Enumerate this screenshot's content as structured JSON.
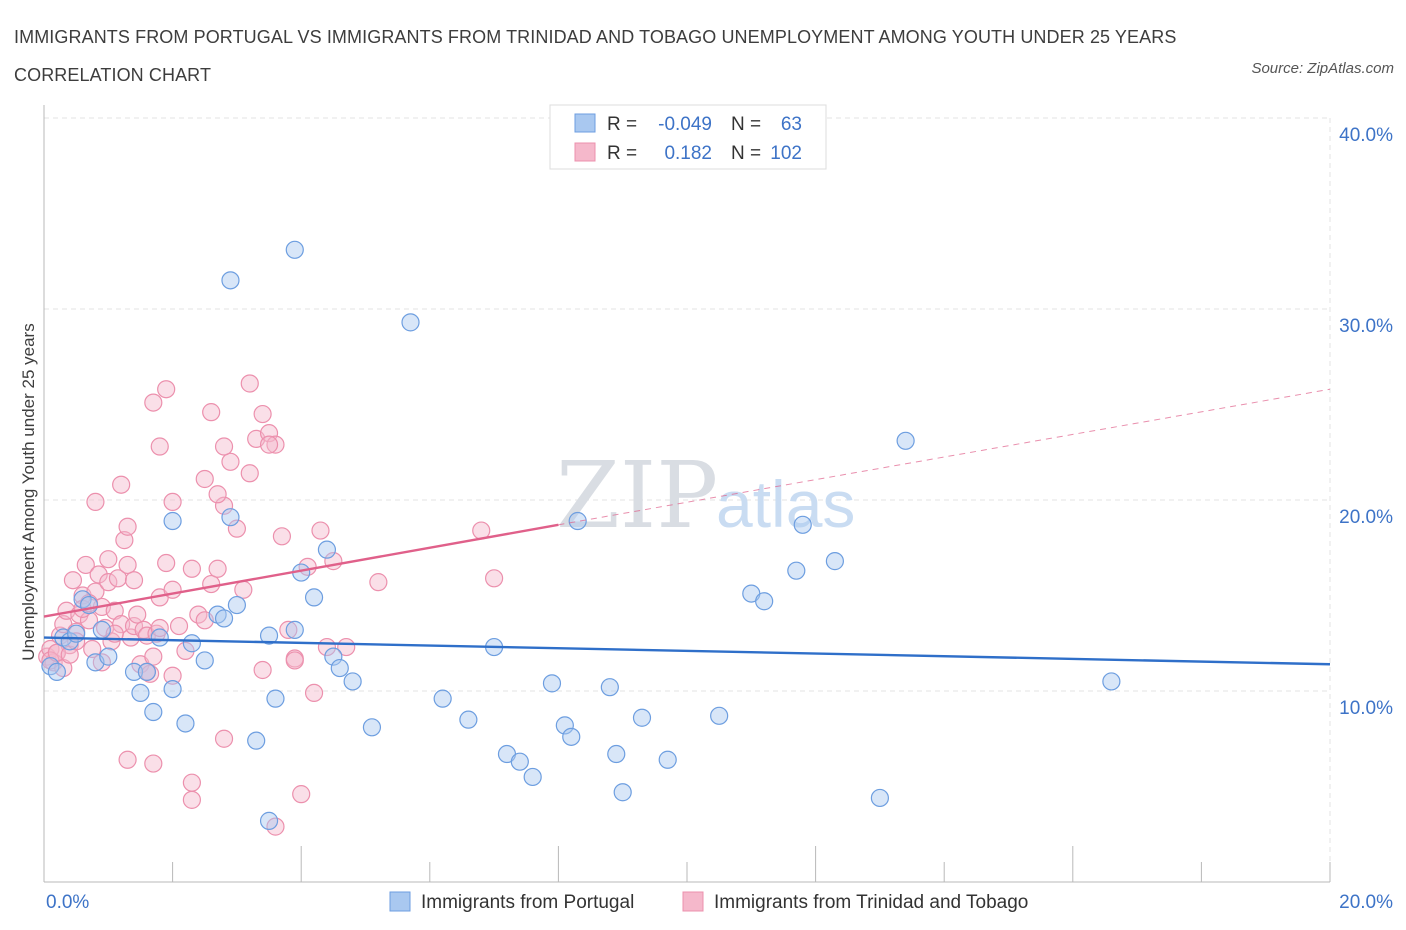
{
  "title": "IMMIGRANTS FROM PORTUGAL VS IMMIGRANTS FROM TRINIDAD AND TOBAGO UNEMPLOYMENT AMONG YOUTH UNDER 25 YEARS CORRELATION CHART",
  "source": "Source: ZipAtlas.com",
  "watermark": {
    "zip": "ZIP",
    "atlas": "atlas"
  },
  "legend": {
    "r_label": "R =",
    "n_label": "N =",
    "rows": [
      {
        "r": "-0.049",
        "n": "63"
      },
      {
        "r": "0.182",
        "n": "102"
      }
    ]
  },
  "colors": {
    "portugal_fill": "#a9c8f0",
    "portugal_stroke": "#6d9ee0",
    "portugal_line": "#2f6fc9",
    "trinidad_fill": "#f5b8cb",
    "trinidad_stroke": "#ec90ad",
    "trinidad_line": "#e0608a",
    "tick_label": "#3d73c7"
  },
  "chart_data": {
    "type": "scatter",
    "xlabel": "",
    "ylabel": "Unemployment Among Youth under 25 years",
    "xlim": [
      0,
      20
    ],
    "ylim": [
      0,
      40
    ],
    "x_tick_labels": [
      "0.0%",
      "20.0%"
    ],
    "y_tick_labels": [
      "10.0%",
      "20.0%",
      "30.0%",
      "40.0%"
    ],
    "y_ticks": [
      10,
      20,
      30,
      40
    ],
    "grid": true,
    "legend_position": "top-center",
    "series": [
      {
        "name": "Immigrants from Portugal",
        "r": -0.049,
        "n": 63,
        "trend": {
          "x0": 0.0,
          "y0": 12.8,
          "x1": 20.0,
          "y1": 11.4
        },
        "points": [
          [
            0.1,
            11.3
          ],
          [
            0.2,
            11.0
          ],
          [
            0.3,
            12.8
          ],
          [
            0.4,
            12.6
          ],
          [
            0.5,
            13.0
          ],
          [
            0.6,
            14.8
          ],
          [
            0.7,
            14.5
          ],
          [
            0.8,
            11.5
          ],
          [
            0.9,
            13.2
          ],
          [
            1.0,
            11.8
          ],
          [
            1.4,
            11.0
          ],
          [
            1.5,
            9.9
          ],
          [
            1.7,
            8.9
          ],
          [
            1.8,
            12.8
          ],
          [
            2.0,
            10.1
          ],
          [
            2.2,
            8.3
          ],
          [
            2.3,
            12.5
          ],
          [
            2.5,
            11.6
          ],
          [
            2.7,
            14.0
          ],
          [
            2.8,
            13.8
          ],
          [
            3.0,
            14.5
          ],
          [
            3.3,
            7.4
          ],
          [
            3.5,
            12.9
          ],
          [
            3.6,
            9.6
          ],
          [
            3.9,
            13.2
          ],
          [
            4.0,
            16.2
          ],
          [
            4.2,
            14.9
          ],
          [
            4.4,
            17.4
          ],
          [
            4.5,
            11.8
          ],
          [
            4.6,
            11.2
          ],
          [
            4.8,
            10.5
          ],
          [
            5.1,
            8.1
          ],
          [
            5.7,
            29.3
          ],
          [
            6.2,
            9.6
          ],
          [
            6.6,
            8.5
          ],
          [
            7.0,
            12.3
          ],
          [
            7.2,
            6.7
          ],
          [
            7.4,
            6.3
          ],
          [
            7.6,
            5.5
          ],
          [
            7.9,
            10.4
          ],
          [
            8.1,
            8.2
          ],
          [
            8.2,
            7.6
          ],
          [
            8.3,
            18.9
          ],
          [
            8.8,
            10.2
          ],
          [
            8.9,
            6.7
          ],
          [
            9.0,
            4.7
          ],
          [
            9.3,
            8.6
          ],
          [
            9.7,
            6.4
          ],
          [
            10.5,
            8.7
          ],
          [
            11.0,
            15.1
          ],
          [
            11.2,
            14.7
          ],
          [
            11.7,
            16.3
          ],
          [
            11.8,
            18.7
          ],
          [
            12.3,
            16.8
          ],
          [
            13.0,
            4.4
          ],
          [
            13.4,
            23.1
          ],
          [
            16.6,
            10.5
          ],
          [
            2.9,
            31.5
          ],
          [
            3.9,
            33.1
          ],
          [
            2.0,
            18.9
          ],
          [
            2.9,
            19.1
          ],
          [
            3.5,
            3.2
          ],
          [
            1.6,
            11.0
          ]
        ]
      },
      {
        "name": "Immigrants from Trinidad and Tobago",
        "r": 0.182,
        "n": 102,
        "trend": {
          "x0": 0.0,
          "y0": 13.9,
          "x1": 8.0,
          "y1": 18.7
        },
        "trend_extension": {
          "x0": 8.0,
          "y0": 18.7,
          "x1": 20.0,
          "y1": 25.8
        },
        "points": [
          [
            0.05,
            11.8
          ],
          [
            0.1,
            12.2
          ],
          [
            0.15,
            11.5
          ],
          [
            0.2,
            12.0
          ],
          [
            0.25,
            12.9
          ],
          [
            0.3,
            13.5
          ],
          [
            0.35,
            14.2
          ],
          [
            0.4,
            12.4
          ],
          [
            0.45,
            15.8
          ],
          [
            0.5,
            13.1
          ],
          [
            0.55,
            14.0
          ],
          [
            0.6,
            15.0
          ],
          [
            0.65,
            16.6
          ],
          [
            0.7,
            13.7
          ],
          [
            0.75,
            12.2
          ],
          [
            0.8,
            15.2
          ],
          [
            0.85,
            16.1
          ],
          [
            0.9,
            14.4
          ],
          [
            0.95,
            13.3
          ],
          [
            1.0,
            15.7
          ],
          [
            1.05,
            12.6
          ],
          [
            1.1,
            14.2
          ],
          [
            1.15,
            15.9
          ],
          [
            1.2,
            13.5
          ],
          [
            1.25,
            17.9
          ],
          [
            1.3,
            16.6
          ],
          [
            1.35,
            12.8
          ],
          [
            1.4,
            13.4
          ],
          [
            1.45,
            14.0
          ],
          [
            1.5,
            11.4
          ],
          [
            1.55,
            13.2
          ],
          [
            1.6,
            12.9
          ],
          [
            1.65,
            10.9
          ],
          [
            1.7,
            11.8
          ],
          [
            1.75,
            13.0
          ],
          [
            1.8,
            14.9
          ],
          [
            1.9,
            16.7
          ],
          [
            2.0,
            15.3
          ],
          [
            2.1,
            13.4
          ],
          [
            2.2,
            12.1
          ],
          [
            2.3,
            16.4
          ],
          [
            2.4,
            14.0
          ],
          [
            2.5,
            13.7
          ],
          [
            2.6,
            15.6
          ],
          [
            2.7,
            16.4
          ],
          [
            2.8,
            19.7
          ],
          [
            2.9,
            22.0
          ],
          [
            3.0,
            18.5
          ],
          [
            3.1,
            15.3
          ],
          [
            3.2,
            21.4
          ],
          [
            3.3,
            23.2
          ],
          [
            3.4,
            24.5
          ],
          [
            3.5,
            23.5
          ],
          [
            3.6,
            22.9
          ],
          [
            3.7,
            18.1
          ],
          [
            3.8,
            13.2
          ],
          [
            3.9,
            11.7
          ],
          [
            4.0,
            4.6
          ],
          [
            4.1,
            16.5
          ],
          [
            4.2,
            9.9
          ],
          [
            4.3,
            18.4
          ],
          [
            4.5,
            16.8
          ],
          [
            4.7,
            12.3
          ],
          [
            5.2,
            15.7
          ],
          [
            6.8,
            18.4
          ],
          [
            7.0,
            15.9
          ],
          [
            1.7,
            25.1
          ],
          [
            1.9,
            25.8
          ],
          [
            1.8,
            22.8
          ],
          [
            1.2,
            20.8
          ],
          [
            1.3,
            18.6
          ],
          [
            0.8,
            19.9
          ],
          [
            2.0,
            19.9
          ],
          [
            2.6,
            24.6
          ],
          [
            2.8,
            22.8
          ],
          [
            3.2,
            26.1
          ],
          [
            3.5,
            22.9
          ],
          [
            2.8,
            7.5
          ],
          [
            1.3,
            6.4
          ],
          [
            1.7,
            6.2
          ],
          [
            2.3,
            5.2
          ],
          [
            2.3,
            4.3
          ],
          [
            3.6,
            2.9
          ],
          [
            3.4,
            11.1
          ],
          [
            3.9,
            11.6
          ],
          [
            4.4,
            12.3
          ],
          [
            0.1,
            11.6
          ],
          [
            0.2,
            12.0
          ],
          [
            0.3,
            11.2
          ],
          [
            0.4,
            11.9
          ],
          [
            0.5,
            12.6
          ],
          [
            0.6,
            14.3
          ],
          [
            0.7,
            14.6
          ],
          [
            0.9,
            11.5
          ],
          [
            1.0,
            16.9
          ],
          [
            1.1,
            13.0
          ],
          [
            1.4,
            15.8
          ],
          [
            1.6,
            11.0
          ],
          [
            1.8,
            13.3
          ],
          [
            2.0,
            10.8
          ],
          [
            2.5,
            21.1
          ],
          [
            2.7,
            20.3
          ]
        ]
      }
    ]
  },
  "bottom_legend": [
    "Immigrants from Portugal",
    "Immigrants from Trinidad and Tobago"
  ]
}
